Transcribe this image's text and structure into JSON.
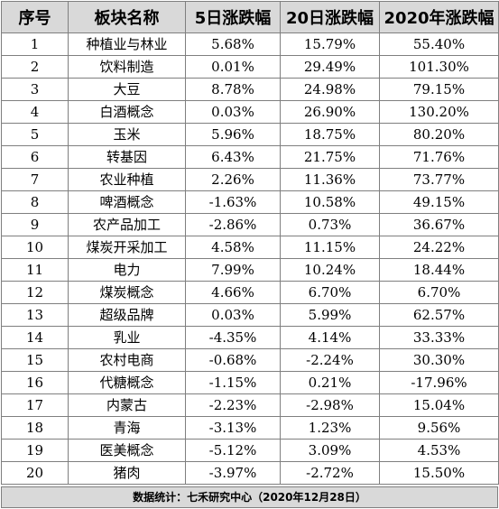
{
  "table": {
    "headers": [
      "序号",
      "板块名称",
      "5日涨跌幅",
      "20日涨跌幅",
      "2020年涨跌幅"
    ],
    "rows": [
      [
        "1",
        "种植业与林业",
        "5.68%",
        "15.79%",
        "55.40%"
      ],
      [
        "2",
        "饮料制造",
        "0.01%",
        "29.49%",
        "101.30%"
      ],
      [
        "3",
        "大豆",
        "8.78%",
        "24.98%",
        "79.15%"
      ],
      [
        "4",
        "白酒概念",
        "0.03%",
        "26.90%",
        "130.20%"
      ],
      [
        "5",
        "玉米",
        "5.96%",
        "18.75%",
        "80.20%"
      ],
      [
        "6",
        "转基因",
        "6.43%",
        "21.75%",
        "71.76%"
      ],
      [
        "7",
        "农业种植",
        "2.26%",
        "11.36%",
        "73.77%"
      ],
      [
        "8",
        "啤酒概念",
        "-1.63%",
        "10.58%",
        "49.15%"
      ],
      [
        "9",
        "农产品加工",
        "-2.86%",
        "0.73%",
        "36.67%"
      ],
      [
        "10",
        "煤炭开采加工",
        "4.58%",
        "11.15%",
        "24.22%"
      ],
      [
        "11",
        "电力",
        "7.99%",
        "10.24%",
        "18.44%"
      ],
      [
        "12",
        "煤炭概念",
        "4.66%",
        "6.70%",
        "6.70%"
      ],
      [
        "13",
        "超级品牌",
        "0.03%",
        "5.99%",
        "62.57%"
      ],
      [
        "14",
        "乳业",
        "-4.35%",
        "4.14%",
        "33.33%"
      ],
      [
        "15",
        "农村电商",
        "-0.68%",
        "-2.24%",
        "30.30%"
      ],
      [
        "16",
        "代糖概念",
        "-1.15%",
        "0.21%",
        "-17.96%"
      ],
      [
        "17",
        "内蒙古",
        "-2.23%",
        "-2.98%",
        "15.04%"
      ],
      [
        "18",
        "青海",
        "-3.13%",
        "1.23%",
        "9.56%"
      ],
      [
        "19",
        "医美概念",
        "-5.12%",
        "3.09%",
        "4.53%"
      ],
      [
        "20",
        "猪肉",
        "-3.97%",
        "-2.72%",
        "15.50%"
      ]
    ]
  },
  "footer": {
    "text": "数据统计：七禾研究中心（2020年12月28日）"
  }
}
